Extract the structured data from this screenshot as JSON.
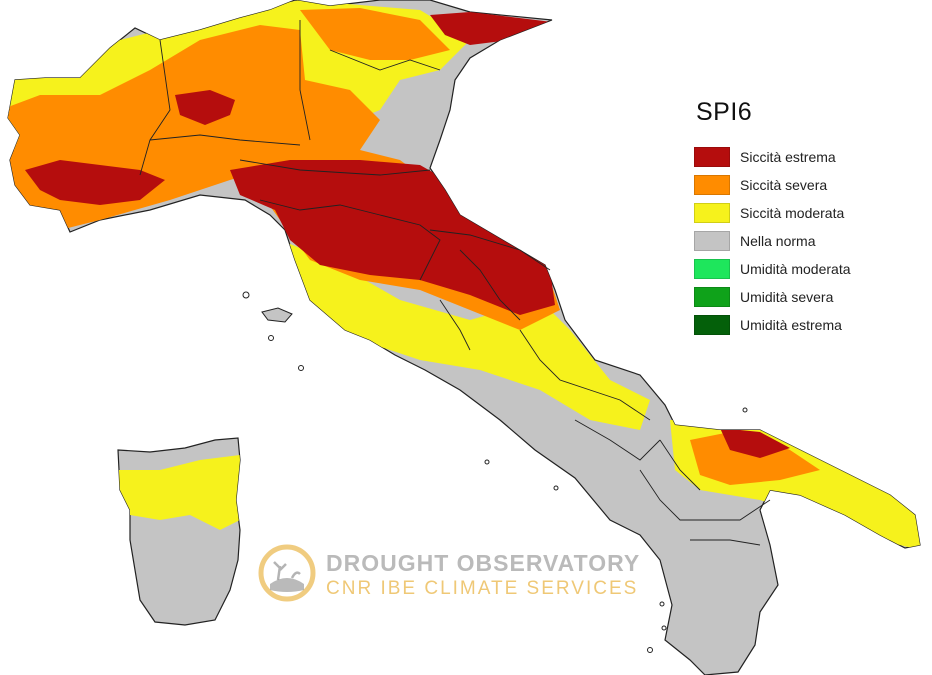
{
  "legend": {
    "title": "SPI6",
    "items": [
      {
        "label": "Siccità estrema",
        "color": "#b50d0d"
      },
      {
        "label": "Siccità severa",
        "color": "#ff8c00"
      },
      {
        "label": "Siccità moderata",
        "color": "#f6f21c"
      },
      {
        "label": "Nella norma",
        "color": "#c4c4c4"
      },
      {
        "label": "Umidità moderata",
        "color": "#1ee65c"
      },
      {
        "label": "Umidità severa",
        "color": "#0fa21a"
      },
      {
        "label": "Umidità estrema",
        "color": "#04600a"
      }
    ]
  },
  "watermark": {
    "title": "DROUGHT OBSERVATORY",
    "subtitle": "CNR IBE CLIMATE SERVICES",
    "title_color": "#8a8a8a",
    "subtitle_color": "#e8b03c",
    "icon": "drought-observatory-logo-icon"
  }
}
